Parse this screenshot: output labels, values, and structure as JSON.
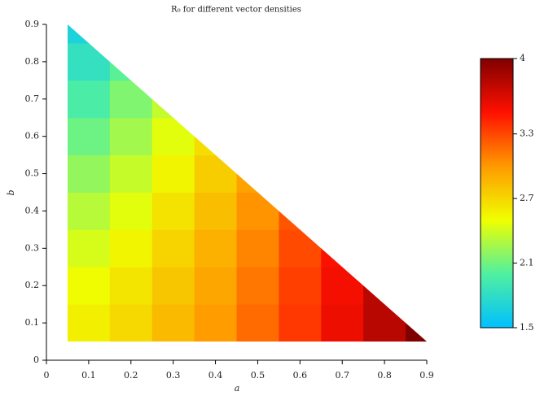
{
  "chart_data": {
    "type": "heatmap",
    "title": "R₀ for different vector densities",
    "x_label": "a",
    "y_label": "b",
    "xbins": [
      0.05,
      0.15,
      0.25,
      0.35,
      0.45,
      0.55,
      0.65,
      0.75,
      0.85,
      0.95
    ],
    "ybins": [
      0.05,
      0.15,
      0.25,
      0.35,
      0.45,
      0.55,
      0.65,
      0.75,
      0.85,
      0.95
    ],
    "z": [
      [
        2.58,
        2.69,
        2.84,
        2.99,
        3.17,
        3.36,
        3.57,
        3.78,
        4.0
      ],
      [
        2.51,
        2.63,
        2.78,
        2.94,
        3.13,
        3.33,
        3.54,
        3.77,
        null
      ],
      [
        2.42,
        2.55,
        2.72,
        2.89,
        3.08,
        3.29,
        3.51,
        null,
        null
      ],
      [
        2.32,
        2.46,
        2.64,
        2.82,
        3.02,
        3.25,
        null,
        null,
        null
      ],
      [
        2.21,
        2.37,
        2.55,
        2.75,
        2.96,
        null,
        null,
        null,
        null
      ],
      [
        2.09,
        2.26,
        2.46,
        2.67,
        null,
        null,
        null,
        null,
        null
      ],
      [
        1.97,
        2.15,
        2.36,
        null,
        null,
        null,
        null,
        null,
        null
      ],
      [
        1.83,
        2.03,
        null,
        null,
        null,
        null,
        null,
        null,
        null
      ],
      [
        1.69,
        null,
        null,
        null,
        null,
        null,
        null,
        null,
        null
      ]
    ],
    "xlim": [
      0,
      0.9
    ],
    "ylim": [
      0,
      0.9
    ],
    "xticks": [
      0,
      0.1,
      0.2,
      0.3,
      0.4,
      0.5,
      0.6,
      0.7,
      0.8,
      0.9
    ],
    "yticks": [
      0,
      0.1,
      0.2,
      0.3,
      0.4,
      0.5,
      0.6,
      0.7,
      0.8,
      0.9
    ],
    "clim": [
      1.5,
      4
    ],
    "cticks": [
      1.5,
      2.1,
      2.7,
      3.3,
      4
    ],
    "colormap": [
      "#00c0ff",
      "#50f0a0",
      "#f0ff00",
      "#ff9a00",
      "#ff1000",
      "#800000"
    ]
  }
}
